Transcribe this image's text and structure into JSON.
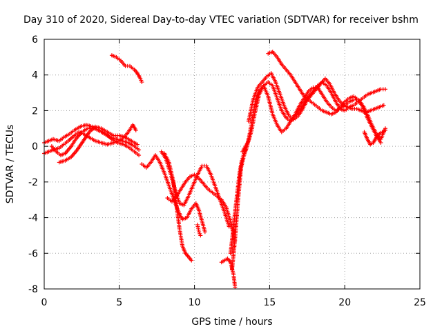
{
  "chart_data": {
    "type": "scatter",
    "title": "Day 310 of 2020, Sidereal Day-to-day VTEC variation (SDTVAR) for receiver bshm",
    "xlabel": "GPS time / hours",
    "ylabel": "SDTVAR / TECUs",
    "xlim": [
      0,
      25
    ],
    "ylim": [
      -8,
      6
    ],
    "xticks": [
      0,
      5,
      10,
      15,
      20,
      25
    ],
    "yticks": [
      -8,
      -6,
      -4,
      -2,
      0,
      2,
      4,
      6
    ],
    "grid": true,
    "marker": "+",
    "color": "#ff0000",
    "series": [
      {
        "x": [
          0.0,
          0.3,
          0.6,
          1.0,
          1.3,
          1.6,
          2.0,
          2.3,
          2.6,
          3.0,
          3.4,
          3.8,
          4.2,
          4.6,
          5.0,
          5.3,
          5.6,
          5.9,
          6.1
        ],
        "y": [
          -0.4,
          -0.3,
          -0.2,
          -0.1,
          0.1,
          0.3,
          0.6,
          0.8,
          0.7,
          0.5,
          0.3,
          0.2,
          0.1,
          0.2,
          0.3,
          0.5,
          0.8,
          1.2,
          0.9
        ]
      },
      {
        "x": [
          0.0,
          0.3,
          0.6,
          1.0,
          1.3,
          1.7,
          2.0,
          2.4,
          2.8,
          3.2,
          3.6,
          4.0,
          4.4,
          4.8,
          5.2,
          5.6,
          6.0,
          6.3
        ],
        "y": [
          0.2,
          0.3,
          0.4,
          0.3,
          0.5,
          0.7,
          0.9,
          1.1,
          1.2,
          1.1,
          0.9,
          0.7,
          0.5,
          0.4,
          0.3,
          0.2,
          0.0,
          -0.2
        ]
      },
      {
        "x": [
          0.5,
          0.8,
          1.1,
          1.4,
          1.8,
          2.1,
          2.5,
          2.9,
          3.3,
          3.7,
          4.1,
          4.5,
          4.9,
          5.3,
          5.7,
          6.0,
          6.3
        ],
        "y": [
          0.0,
          -0.3,
          -0.5,
          -0.4,
          0.0,
          0.4,
          0.8,
          1.0,
          1.0,
          0.9,
          0.7,
          0.4,
          0.2,
          0.1,
          -0.1,
          -0.3,
          -0.5
        ]
      },
      {
        "x": [
          1.0,
          1.4,
          1.8,
          2.2,
          2.6,
          3.0,
          3.4,
          3.8,
          4.2,
          4.6,
          5.0,
          5.4,
          5.8,
          6.2
        ],
        "y": [
          -0.9,
          -0.8,
          -0.6,
          -0.2,
          0.3,
          0.8,
          1.1,
          1.0,
          0.8,
          0.6,
          0.6,
          0.5,
          0.3,
          0.1
        ]
      },
      {
        "x": [
          4.5,
          4.8,
          5.1,
          5.4,
          5.7,
          6.0,
          6.2,
          6.4,
          6.5
        ],
        "y": [
          5.1,
          5.0,
          4.8,
          4.5,
          4.5,
          4.3,
          4.1,
          3.8,
          3.6
        ]
      },
      {
        "x": [
          6.5,
          6.8,
          7.1,
          7.4,
          7.7,
          8.0,
          8.3,
          8.6,
          8.9,
          9.2,
          9.5,
          9.8,
          10.1,
          10.3,
          10.5,
          10.7
        ],
        "y": [
          -1.0,
          -1.2,
          -0.9,
          -0.5,
          -0.9,
          -1.5,
          -2.2,
          -2.9,
          -3.6,
          -4.1,
          -4.0,
          -3.5,
          -3.2,
          -3.6,
          -4.2,
          -4.8
        ]
      },
      {
        "x": [
          8.0,
          8.3,
          8.6,
          8.8,
          9.0,
          9.2,
          9.4,
          9.6,
          9.8
        ],
        "y": [
          -0.4,
          -0.9,
          -2.0,
          -3.3,
          -4.6,
          -5.6,
          -6.0,
          -6.2,
          -6.4
        ]
      },
      {
        "x": [
          7.8,
          8.1,
          8.4,
          8.7,
          9.0,
          9.3,
          9.6,
          9.9,
          10.2,
          10.5,
          10.8,
          11.1,
          11.4,
          11.7,
          12.0,
          12.3
        ],
        "y": [
          -0.3,
          -0.7,
          -1.5,
          -2.4,
          -3.2,
          -3.3,
          -2.8,
          -2.2,
          -1.6,
          -1.1,
          -1.1,
          -1.6,
          -2.3,
          -3.0,
          -3.7,
          -4.5
        ]
      },
      {
        "x": [
          8.2,
          8.5,
          8.8,
          9.1,
          9.4,
          9.7,
          10.0,
          10.3,
          10.6,
          10.9,
          11.2,
          11.5,
          11.8,
          12.1,
          12.4,
          12.7
        ],
        "y": [
          -2.9,
          -3.1,
          -2.8,
          -2.4,
          -2.0,
          -1.7,
          -1.6,
          -1.8,
          -2.1,
          -2.4,
          -2.6,
          -2.8,
          -3.0,
          -3.4,
          -4.2,
          -5.3
        ]
      },
      {
        "x": [
          11.8,
          12.0,
          12.2,
          12.4,
          12.6,
          12.7
        ],
        "y": [
          -6.5,
          -6.4,
          -6.3,
          -6.5,
          -7.2,
          -7.9
        ]
      },
      {
        "x": [
          12.5,
          12.7,
          12.9,
          13.1,
          13.3,
          13.5,
          13.7,
          13.9,
          14.1,
          14.3,
          14.6,
          14.9,
          15.2,
          15.5,
          15.8,
          16.1,
          16.4,
          16.7,
          17.0,
          17.3,
          17.6,
          17.9,
          18.2,
          18.5,
          18.8,
          19.1,
          19.4,
          19.7,
          20.0,
          20.3,
          20.6,
          20.9,
          21.2,
          21.5,
          21.8,
          22.1,
          22.4,
          22.7
        ],
        "y": [
          -6.9,
          -5.2,
          -3.0,
          -1.2,
          -0.5,
          0.0,
          0.8,
          1.8,
          2.7,
          3.1,
          3.4,
          2.8,
          1.8,
          1.2,
          0.8,
          1.0,
          1.4,
          1.8,
          2.3,
          2.7,
          3.1,
          3.3,
          3.3,
          2.9,
          2.5,
          2.2,
          2.0,
          2.1,
          2.3,
          2.5,
          2.6,
          2.6,
          2.3,
          1.8,
          1.2,
          0.7,
          0.4,
          1.0
        ]
      },
      {
        "x": [
          13.2,
          13.4,
          13.6,
          13.8,
          14.0,
          14.3,
          14.6,
          14.9,
          15.2,
          15.5,
          15.8,
          16.1,
          16.4,
          16.7,
          17.0,
          17.3,
          17.6,
          17.9,
          18.2,
          18.5,
          18.8,
          19.1,
          19.4,
          19.7,
          20.0,
          20.3,
          20.6,
          20.9,
          21.2,
          21.5,
          21.8,
          22.1,
          22.4,
          22.7
        ],
        "y": [
          -0.3,
          0.0,
          0.3,
          0.9,
          1.8,
          2.9,
          3.4,
          3.6,
          3.4,
          2.7,
          2.0,
          1.6,
          1.4,
          1.7,
          2.0,
          2.4,
          2.8,
          3.1,
          3.4,
          3.6,
          3.4,
          3.0,
          2.5,
          2.1,
          2.0,
          2.2,
          2.3,
          2.5,
          2.7,
          2.9,
          3.0,
          3.1,
          3.2,
          3.2
        ]
      },
      {
        "x": [
          13.6,
          13.9,
          14.2,
          14.5,
          14.8,
          15.1,
          15.4,
          15.7,
          16.0,
          16.3,
          16.6,
          16.9,
          17.2,
          17.5,
          17.8,
          18.1,
          18.4,
          18.7,
          19.0,
          19.3,
          19.6,
          19.9,
          20.2,
          20.5,
          20.8,
          21.1,
          21.4,
          21.7,
          22.0,
          22.3,
          22.6
        ],
        "y": [
          1.4,
          2.6,
          3.3,
          3.6,
          3.9,
          4.1,
          3.6,
          2.9,
          2.2,
          1.7,
          1.5,
          1.7,
          2.1,
          2.6,
          2.9,
          3.2,
          3.5,
          3.8,
          3.5,
          3.0,
          2.6,
          2.3,
          2.2,
          2.1,
          2.1,
          2.0,
          1.9,
          2.0,
          2.1,
          2.2,
          2.3
        ]
      },
      {
        "x": [
          14.9,
          15.2,
          15.5,
          15.8,
          16.1,
          16.4,
          16.7,
          17.0,
          17.3,
          17.6,
          17.9,
          18.2,
          18.5,
          18.8,
          19.1,
          19.4,
          19.7,
          20.0,
          20.3,
          20.6,
          20.9,
          21.2,
          21.5,
          21.8,
          22.1,
          22.4
        ],
        "y": [
          5.2,
          5.3,
          5.0,
          4.6,
          4.3,
          4.0,
          3.6,
          3.2,
          2.8,
          2.6,
          2.4,
          2.2,
          2.0,
          1.9,
          1.8,
          1.9,
          2.2,
          2.5,
          2.7,
          2.8,
          2.6,
          2.2,
          1.6,
          1.1,
          0.6,
          0.2
        ]
      },
      {
        "x": [
          21.3,
          21.5,
          21.7,
          21.9,
          22.1,
          22.3,
          22.5,
          22.7
        ],
        "y": [
          0.8,
          0.4,
          0.1,
          0.2,
          0.5,
          0.7,
          0.8,
          0.9
        ]
      },
      {
        "x": [
          12.4,
          12.55,
          12.7,
          12.85,
          13.0,
          13.15,
          13.3,
          13.45
        ],
        "y": [
          -6.0,
          -4.9,
          -3.7,
          -2.6,
          -1.5,
          -0.8,
          -0.4,
          -0.1
        ]
      },
      {
        "x": [
          10.2,
          10.3,
          10.4
        ],
        "y": [
          -4.4,
          -4.8,
          -5.0
        ]
      }
    ]
  }
}
